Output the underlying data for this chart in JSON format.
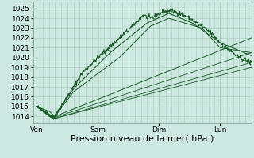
{
  "bg_color": "#cce8e0",
  "grid_color": "#aaccbb",
  "line_color": "#1a5c28",
  "yticks": [
    1014,
    1015,
    1016,
    1017,
    1018,
    1019,
    1020,
    1021,
    1022,
    1023,
    1024,
    1025
  ],
  "ylim": [
    1013.3,
    1025.7
  ],
  "xlabel": "Pression niveau de la mer( hPa )",
  "xlabel_fontsize": 8,
  "tick_fontsize": 6.5,
  "xtick_labels": [
    "Ven",
    "Sam",
    "Dim",
    "Lun"
  ],
  "xtick_positions": [
    0.0,
    0.333,
    0.667,
    1.0
  ],
  "title": ""
}
